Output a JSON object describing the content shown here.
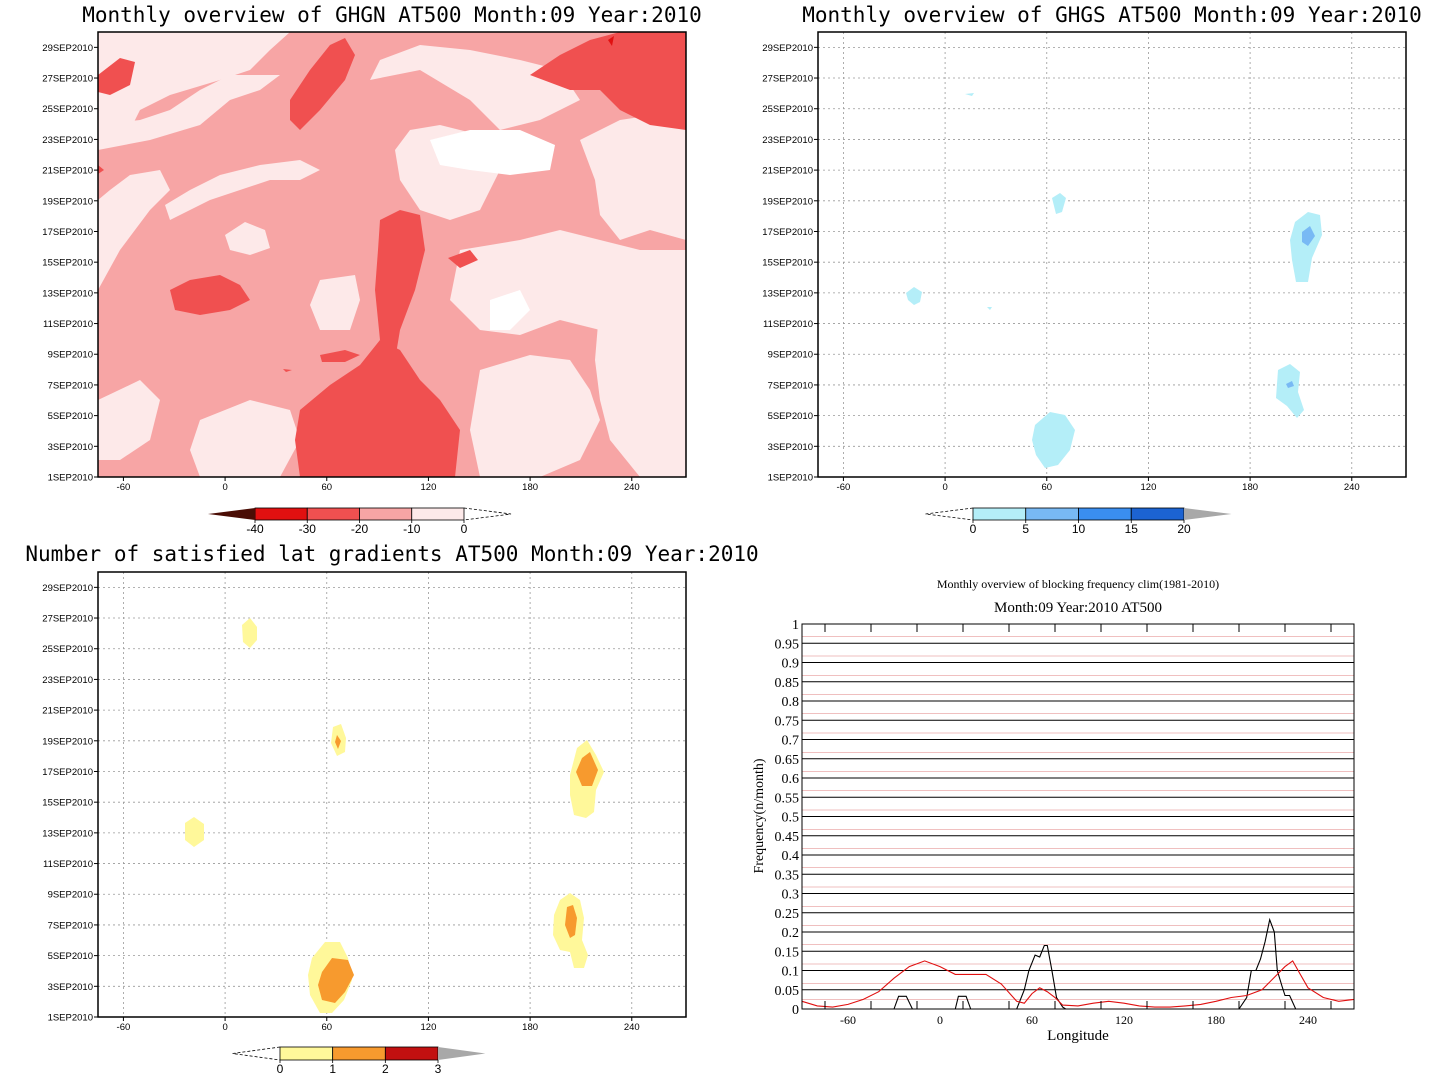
{
  "date_ticks": [
    "1SEP2010",
    "3SEP2010",
    "5SEP2010",
    "7SEP2010",
    "9SEP2010",
    "11SEP2010",
    "13SEP2010",
    "15SEP2010",
    "17SEP2010",
    "19SEP2010",
    "21SEP2010",
    "23SEP2010",
    "25SEP2010",
    "27SEP2010",
    "29SEP2010"
  ],
  "lon_ticks": [
    "-60",
    "0",
    "60",
    "120",
    "180",
    "240"
  ],
  "chart_data": [
    {
      "type": "heatmap",
      "title": "Monthly overview of GHGN AT500 Month:09 Year:2010",
      "x_range": [
        -75,
        272
      ],
      "y_range": [
        "1SEP2010",
        "30SEP2010"
      ],
      "colorbar": {
        "labels": [
          "-40",
          "-30",
          "-20",
          "-10",
          "0"
        ],
        "colors": [
          "#4a0d05",
          "#e11010",
          "#f05050",
          "#f7a5a5",
          "#fde9e9",
          "#ffffff"
        ]
      },
      "grid": false
    },
    {
      "type": "heatmap",
      "title": "Monthly overview of GHGS AT500 Month:09 Year:2010",
      "x_range": [
        -75,
        272
      ],
      "y_range": [
        "1SEP2010",
        "30SEP2010"
      ],
      "colorbar": {
        "labels": [
          "0",
          "5",
          "10",
          "15",
          "20"
        ],
        "colors": [
          "#ffffff",
          "#b4eef8",
          "#78b9f4",
          "#3a8ef0",
          "#1c63d2",
          "#a8a8a8"
        ]
      },
      "grid": true
    },
    {
      "type": "heatmap",
      "title": "Number of satisfied lat gradients AT500 Month:09 Year:2010",
      "x_range": [
        -75,
        272
      ],
      "y_range": [
        "1SEP2010",
        "30SEP2010"
      ],
      "colorbar": {
        "labels": [
          "0",
          "1",
          "2",
          "3"
        ],
        "colors": [
          "#ffffff",
          "#fff89a",
          "#f79a2e",
          "#c21010",
          "#a8a8a8"
        ]
      },
      "grid": true
    },
    {
      "type": "line",
      "title": "Monthly overview of blocking frequency clim(1981-2010)",
      "subtitle": "Month:09 Year:2010  AT500",
      "xlabel": "Longitude",
      "ylabel": "Frequency(n/month)",
      "xlim": [
        -90,
        270
      ],
      "ylim": [
        0,
        1
      ],
      "x_ticks": [
        "-60",
        "0",
        "60",
        "120",
        "180",
        "240"
      ],
      "y_ticks": [
        "0",
        "0.05",
        "0.1",
        "0.15",
        "0.2",
        "0.25",
        "0.3",
        "0.35",
        "0.4",
        "0.45",
        "0.5",
        "0.55",
        "0.6",
        "0.65",
        "0.7",
        "0.75",
        "0.8",
        "0.85",
        "0.9",
        "0.95",
        "1"
      ],
      "series": [
        {
          "color": "#000000",
          "x": [
            -90,
            -30,
            -27,
            -22,
            -18,
            -15,
            10,
            12,
            17,
            20,
            22,
            50,
            55,
            58,
            62,
            65,
            68,
            70,
            73,
            76,
            80,
            82,
            195,
            200,
            203,
            206,
            209,
            212,
            215,
            218,
            220,
            223,
            225,
            228,
            232,
            270
          ],
          "y": [
            0,
            0,
            0.033,
            0.033,
            0,
            0,
            0,
            0.033,
            0.033,
            0,
            0,
            0,
            0.05,
            0.1,
            0.14,
            0.135,
            0.165,
            0.165,
            0.1,
            0.03,
            0.005,
            0,
            0,
            0.03,
            0.1,
            0.1,
            0.13,
            0.175,
            0.232,
            0.2,
            0.1,
            0.06,
            0.035,
            0.035,
            0,
            0
          ]
        },
        {
          "color": "#e01010",
          "x": [
            -90,
            -80,
            -70,
            -60,
            -50,
            -40,
            -30,
            -20,
            -10,
            0,
            10,
            20,
            30,
            40,
            50,
            55,
            60,
            65,
            70,
            75,
            80,
            90,
            100,
            110,
            120,
            130,
            140,
            150,
            160,
            170,
            180,
            190,
            200,
            210,
            220,
            225,
            230,
            235,
            240,
            250,
            260,
            270
          ],
          "y": [
            0.02,
            0.008,
            0.005,
            0.012,
            0.025,
            0.045,
            0.08,
            0.11,
            0.125,
            0.11,
            0.09,
            0.09,
            0.09,
            0.065,
            0.02,
            0.015,
            0.04,
            0.055,
            0.045,
            0.03,
            0.01,
            0.008,
            0.015,
            0.02,
            0.015,
            0.008,
            0.005,
            0.005,
            0.008,
            0.012,
            0.02,
            0.03,
            0.035,
            0.05,
            0.09,
            0.11,
            0.125,
            0.09,
            0.055,
            0.03,
            0.02,
            0.025
          ]
        }
      ],
      "grid": true
    }
  ]
}
